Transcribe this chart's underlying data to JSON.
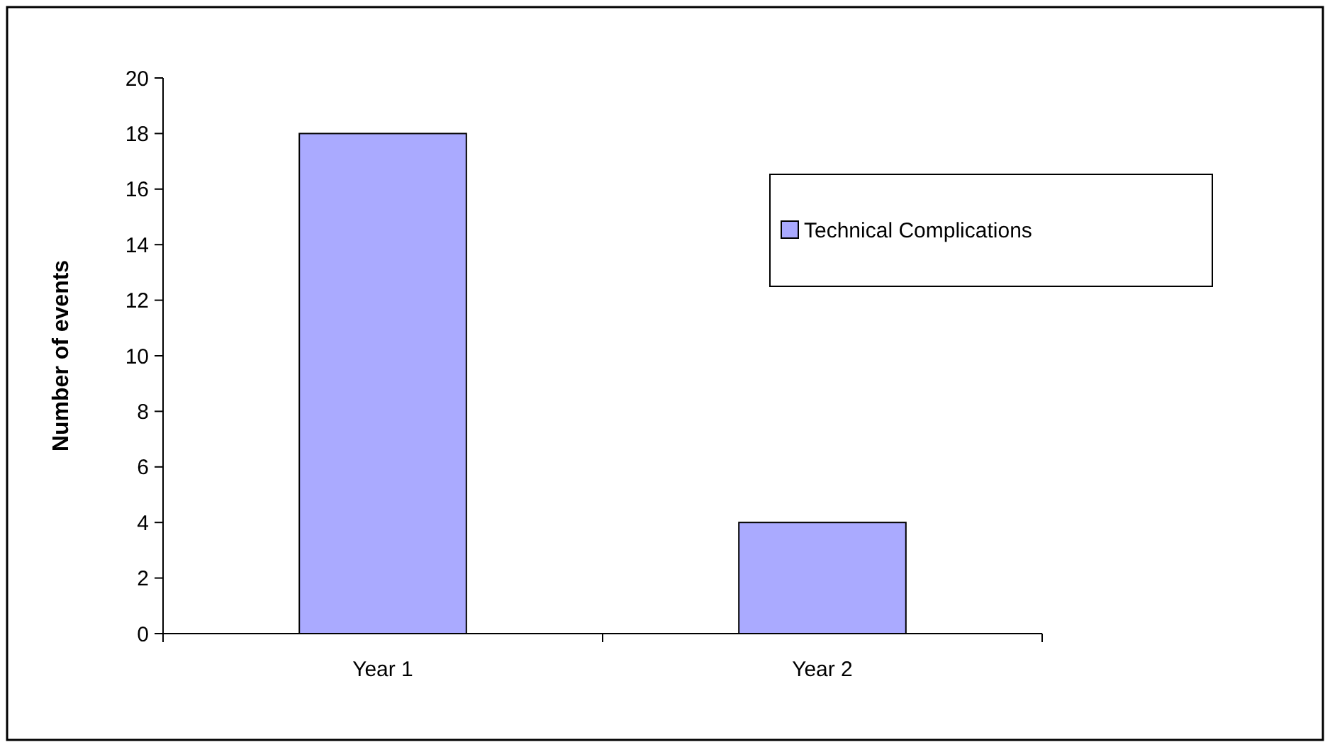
{
  "chart_data": {
    "type": "bar",
    "ylabel": "Number of events",
    "categories": [
      "Year 1",
      "Year 2"
    ],
    "series": [
      {
        "name": "Technical Complications",
        "color": "#aaaaff",
        "values": [
          18,
          4
        ]
      }
    ],
    "ylim": [
      0,
      20
    ],
    "yticks": [
      0,
      2,
      4,
      6,
      8,
      10,
      12,
      14,
      16,
      18,
      20
    ],
    "grid": false,
    "legend": "top right"
  }
}
